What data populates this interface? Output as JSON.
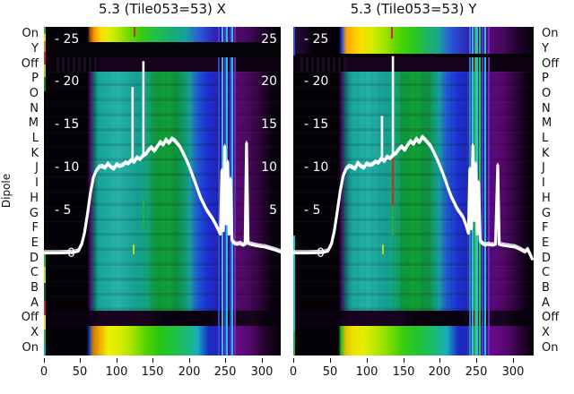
{
  "titles": {
    "left": "5.3 (Tile053=53) X",
    "right": "5.3 (Tile053=53) Y"
  },
  "y_axis": {
    "label": "Dipole",
    "row_labels": [
      "On",
      "Y",
      "Off",
      "P",
      "O",
      "N",
      "M",
      "L",
      "K",
      "J",
      "I",
      "H",
      "G",
      "F",
      "E",
      "D",
      "C",
      "B",
      "A",
      "Off",
      "X",
      "On"
    ]
  },
  "value_ticks": {
    "left_labels": [
      "- 25",
      "- 20",
      "- 15",
      "- 10",
      "- 5",
      "0"
    ],
    "right_labels": [
      "25",
      "20",
      "15",
      "10",
      "5"
    ],
    "values": [
      25,
      20,
      15,
      10,
      5,
      0
    ]
  },
  "x_axis": {
    "tick_labels": [
      "0",
      "50",
      "100",
      "150",
      "200",
      "250",
      "300"
    ],
    "ticks": [
      0,
      50,
      100,
      150,
      200,
      250,
      300
    ]
  },
  "palette": {
    "background": "#ffffff",
    "text": "#111111",
    "overlay_line": "#ffffff",
    "teal": "#18a49b",
    "green": "#10a036",
    "blue": "#1c30d4",
    "purple": "#550a70",
    "yellow": "#f0ee00",
    "orange": "#ff9e00",
    "red": "#cc2020",
    "cyan_line": "#38c8f0",
    "black": "#050108"
  },
  "chart_data": [
    {
      "type": "heatmap",
      "title": "5.3 (Tile053=53) X",
      "x_range": [
        0,
        326
      ],
      "x_ticks": [
        0,
        50,
        100,
        150,
        200,
        250,
        300
      ],
      "rows": [
        "On",
        "Y",
        "Off",
        "P",
        "O",
        "N",
        "M",
        "L",
        "K",
        "J",
        "I",
        "H",
        "G",
        "F",
        "E",
        "D",
        "C",
        "B",
        "A",
        "Off",
        "X",
        "On"
      ],
      "value_scale_ticks": [
        0,
        5,
        10,
        15,
        20,
        25
      ],
      "overlay_line": {
        "points": [
          [
            0,
            0
          ],
          [
            20,
            0
          ],
          [
            40,
            0.05
          ],
          [
            47,
            0.2
          ],
          [
            52,
            1.0
          ],
          [
            56,
            2.4
          ],
          [
            60,
            4.6
          ],
          [
            64,
            7.0
          ],
          [
            68,
            8.8
          ],
          [
            72,
            9.6
          ],
          [
            76,
            10.0
          ],
          [
            80,
            10.1
          ],
          [
            84,
            9.9
          ],
          [
            88,
            10.4
          ],
          [
            92,
            10.0
          ],
          [
            96,
            9.8
          ],
          [
            100,
            10.3
          ],
          [
            104,
            10.1
          ],
          [
            108,
            10.2
          ],
          [
            112,
            10.5
          ],
          [
            116,
            10.4
          ],
          [
            120,
            10.8
          ],
          [
            124,
            10.6
          ],
          [
            128,
            11.1
          ],
          [
            132,
            10.9
          ],
          [
            136,
            11.3
          ],
          [
            140,
            11.5
          ],
          [
            144,
            12.0
          ],
          [
            148,
            12.3
          ],
          [
            152,
            11.9
          ],
          [
            156,
            12.4
          ],
          [
            160,
            12.9
          ],
          [
            164,
            12.6
          ],
          [
            168,
            13.2
          ],
          [
            172,
            12.8
          ],
          [
            176,
            13.3
          ],
          [
            180,
            13.1
          ],
          [
            184,
            12.7
          ],
          [
            188,
            12.3
          ],
          [
            192,
            11.6
          ],
          [
            196,
            10.9
          ],
          [
            200,
            10.1
          ],
          [
            204,
            9.2
          ],
          [
            208,
            8.3
          ],
          [
            212,
            7.3
          ],
          [
            216,
            6.4
          ],
          [
            220,
            5.7
          ],
          [
            224,
            5.0
          ],
          [
            228,
            4.5
          ],
          [
            232,
            4.0
          ],
          [
            236,
            3.4
          ],
          [
            240,
            2.7
          ],
          [
            243,
            2.2
          ],
          [
            245,
            9.6
          ],
          [
            247,
            2.6
          ],
          [
            249,
            12.4
          ],
          [
            251,
            3.4
          ],
          [
            253,
            10.6
          ],
          [
            255,
            2.2
          ],
          [
            257,
            8.6
          ],
          [
            259,
            1.5
          ],
          [
            262,
            1.1
          ],
          [
            266,
            1.0
          ],
          [
            270,
            1.1
          ],
          [
            274,
            0.9
          ],
          [
            277,
            1.0
          ],
          [
            279,
            12.8
          ],
          [
            281,
            1.1
          ],
          [
            285,
            1.0
          ],
          [
            290,
            0.9
          ],
          [
            296,
            0.8
          ],
          [
            304,
            0.7
          ],
          [
            312,
            0.5
          ],
          [
            320,
            0.3
          ],
          [
            326,
            0.1
          ]
        ]
      },
      "spikes": [
        {
          "x": 122,
          "v1": 10.8,
          "v2": 19.4
        },
        {
          "x": 137,
          "v1": 11.2,
          "v2": 22.4
        }
      ],
      "artifact_lines": [
        {
          "x": 240,
          "color": "#2a50e0"
        },
        {
          "x": 244,
          "color": "#38c8f0"
        },
        {
          "x": 248,
          "color": "#2a50e0"
        },
        {
          "x": 251,
          "color": "#38c8f0"
        },
        {
          "x": 255,
          "color": "#2450d8"
        },
        {
          "x": 258,
          "color": "#38c8f0"
        },
        {
          "x": 262,
          "color": "#6a30b8"
        }
      ],
      "short_lines": [
        {
          "x": 122,
          "v1": -0.2,
          "v2": 1.0,
          "color": "#aadc20"
        },
        {
          "x": 136,
          "v1": 2.5,
          "v2": 6.5,
          "color": "#2fae35"
        },
        {
          "x": 124,
          "v1": 25.2,
          "v2": 26.6,
          "color": "#c03018"
        }
      ]
    },
    {
      "type": "heatmap",
      "title": "5.3 (Tile053=53) Y",
      "x_range": [
        0,
        328
      ],
      "x_ticks": [
        0,
        50,
        100,
        150,
        200,
        250,
        300
      ],
      "rows": [
        "On",
        "Y",
        "Off",
        "P",
        "O",
        "N",
        "M",
        "L",
        "K",
        "J",
        "I",
        "H",
        "G",
        "F",
        "E",
        "D",
        "C",
        "B",
        "A",
        "Off",
        "X",
        "On"
      ],
      "value_scale_ticks": [
        0,
        5,
        10,
        15,
        20,
        25
      ],
      "overlay_line": {
        "points": [
          [
            0,
            0
          ],
          [
            20,
            0
          ],
          [
            40,
            0.05
          ],
          [
            47,
            0.2
          ],
          [
            52,
            1.0
          ],
          [
            56,
            2.6
          ],
          [
            60,
            4.8
          ],
          [
            64,
            7.2
          ],
          [
            68,
            9.0
          ],
          [
            72,
            9.8
          ],
          [
            76,
            10.1
          ],
          [
            80,
            10.0
          ],
          [
            84,
            9.8
          ],
          [
            88,
            10.5
          ],
          [
            92,
            10.1
          ],
          [
            96,
            9.9
          ],
          [
            100,
            10.4
          ],
          [
            104,
            10.2
          ],
          [
            108,
            10.3
          ],
          [
            112,
            10.6
          ],
          [
            116,
            10.5
          ],
          [
            120,
            11.0
          ],
          [
            124,
            10.7
          ],
          [
            128,
            11.2
          ],
          [
            132,
            11.0
          ],
          [
            136,
            11.4
          ],
          [
            140,
            11.6
          ],
          [
            144,
            12.1
          ],
          [
            148,
            12.4
          ],
          [
            152,
            12.0
          ],
          [
            156,
            12.6
          ],
          [
            160,
            13.0
          ],
          [
            164,
            12.7
          ],
          [
            168,
            13.3
          ],
          [
            172,
            12.9
          ],
          [
            176,
            13.5
          ],
          [
            180,
            13.2
          ],
          [
            184,
            12.8
          ],
          [
            188,
            12.4
          ],
          [
            192,
            11.7
          ],
          [
            196,
            11.0
          ],
          [
            200,
            10.2
          ],
          [
            204,
            9.3
          ],
          [
            208,
            8.4
          ],
          [
            212,
            7.4
          ],
          [
            216,
            6.5
          ],
          [
            220,
            5.8
          ],
          [
            224,
            5.1
          ],
          [
            228,
            4.6
          ],
          [
            232,
            4.1
          ],
          [
            236,
            3.2
          ],
          [
            239,
            2.3
          ],
          [
            241,
            9.8
          ],
          [
            243,
            2.8
          ],
          [
            245,
            12.5
          ],
          [
            247,
            3.8
          ],
          [
            249,
            10.4
          ],
          [
            251,
            2.2
          ],
          [
            253,
            8.2
          ],
          [
            255,
            1.4
          ],
          [
            258,
            1.1
          ],
          [
            262,
            0.9
          ],
          [
            266,
            1.0
          ],
          [
            272,
            0.9
          ],
          [
            276,
            1.0
          ],
          [
            279,
            10.2
          ],
          [
            281,
            1.0
          ],
          [
            286,
            0.9
          ],
          [
            294,
            0.8
          ],
          [
            302,
            0.7
          ],
          [
            310,
            0.4
          ],
          [
            316,
            0.1
          ],
          [
            320,
            0.4
          ],
          [
            326,
            -0.7
          ]
        ]
      },
      "spikes": [
        {
          "x": 121,
          "v1": 10.8,
          "v2": 16.0
        },
        {
          "x": 136,
          "v1": 11.2,
          "v2": 23.0
        }
      ],
      "artifact_lines": [
        {
          "x": 240,
          "color": "#3a7ce0"
        },
        {
          "x": 244,
          "color": "#38c8f0"
        },
        {
          "x": 247,
          "color": "#2fd14c"
        },
        {
          "x": 250,
          "color": "#38c8f0"
        },
        {
          "x": 253,
          "color": "#2fd14c"
        },
        {
          "x": 257,
          "color": "#2a50e0"
        },
        {
          "x": 261,
          "color": "#38c8f0"
        },
        {
          "x": 266,
          "color": "#7a30c8"
        }
      ],
      "short_lines": [
        {
          "x": 121,
          "v1": -0.2,
          "v2": 1.0,
          "color": "#aadc20"
        },
        {
          "x": 135,
          "v1": 5.5,
          "v2": 11.5,
          "color": "#d03010"
        },
        {
          "x": 135,
          "v1": 2.0,
          "v2": 5.5,
          "color": "#2fae35"
        },
        {
          "x": 133,
          "v1": 25.0,
          "v2": 26.6,
          "color": "#d02020"
        }
      ]
    }
  ]
}
